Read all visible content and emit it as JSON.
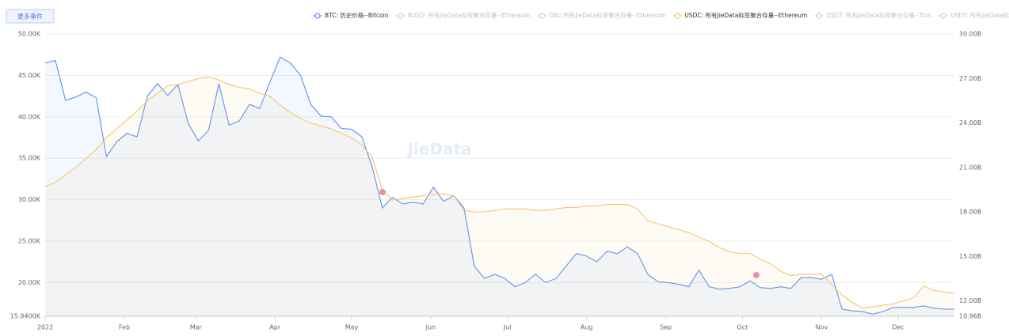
{
  "chart_data": {
    "type": "line",
    "button": "更多事件",
    "watermark": "JieData",
    "x": [
      0,
      4,
      8,
      12,
      16,
      20,
      24,
      28,
      32,
      36,
      40,
      44,
      48,
      52,
      56,
      60,
      64,
      68,
      72,
      76,
      80,
      84,
      88,
      92,
      96,
      100,
      104,
      108,
      112,
      116,
      120,
      124,
      128,
      132,
      136,
      140,
      144,
      148,
      152,
      156,
      160,
      164,
      168,
      172,
      176,
      180,
      184,
      188,
      192,
      196,
      200,
      204,
      208,
      212,
      216,
      220,
      224,
      228,
      232,
      236,
      240,
      244,
      248,
      252,
      256,
      260,
      264,
      268,
      272,
      276,
      280,
      284,
      288,
      292,
      296,
      300,
      304,
      308,
      312,
      316,
      320,
      324,
      328,
      332,
      336,
      340,
      344,
      348,
      352,
      356
    ],
    "xlim": [
      0,
      356
    ],
    "xticks": [
      {
        "value": 0,
        "label": "2022"
      },
      {
        "value": 31,
        "label": "Feb"
      },
      {
        "value": 59,
        "label": "Mar"
      },
      {
        "value": 90,
        "label": "Apr"
      },
      {
        "value": 120,
        "label": "May"
      },
      {
        "value": 151,
        "label": "Jun"
      },
      {
        "value": 181,
        "label": "Jul"
      },
      {
        "value": 212,
        "label": "Aug"
      },
      {
        "value": 243,
        "label": "Sep"
      },
      {
        "value": 273,
        "label": "Oct"
      },
      {
        "value": 304,
        "label": "Nov"
      },
      {
        "value": 334,
        "label": "Dec"
      }
    ],
    "ylim": [
      15.94,
      50
    ],
    "yticks": [
      {
        "value": 15.94,
        "label": "15.9400K"
      },
      {
        "value": 20,
        "label": "20.00K"
      },
      {
        "value": 25,
        "label": "25.00K"
      },
      {
        "value": 30,
        "label": "30.00K"
      },
      {
        "value": 35,
        "label": "35.00K"
      },
      {
        "value": 40,
        "label": "40.00K"
      },
      {
        "value": 45,
        "label": "45.00K"
      },
      {
        "value": 50,
        "label": "50.00K"
      }
    ],
    "y2lim": [
      10.96,
      30
    ],
    "y2ticks": [
      {
        "value": 10.96,
        "label": "10.96B"
      },
      {
        "value": 12,
        "label": "12.00B"
      },
      {
        "value": 15,
        "label": "15.00B"
      },
      {
        "value": 18,
        "label": "18.00B"
      },
      {
        "value": 21,
        "label": "21.00B"
      },
      {
        "value": 24,
        "label": "24.00B"
      },
      {
        "value": 27,
        "label": "27.00B"
      },
      {
        "value": 30,
        "label": "30.00B"
      }
    ],
    "grid": true,
    "series": [
      {
        "name": "BTC: 历史价格--Bitcoin",
        "color": "#5b8ff9",
        "axis": "y",
        "values": [
          46.5,
          46.8,
          42,
          42.4,
          43,
          42.3,
          35.2,
          37,
          38,
          37.6,
          42.5,
          44,
          42.6,
          43.9,
          39.2,
          37.1,
          38.4,
          44,
          39,
          39.5,
          41.5,
          41,
          44.2,
          47.2,
          46.5,
          45,
          41.5,
          40.1,
          40,
          38.6,
          38.5,
          37.6,
          34,
          29,
          30.3,
          29.5,
          29.7,
          29.5,
          31.5,
          29.8,
          30.5,
          29,
          22,
          20.5,
          21,
          20.5,
          19.5,
          20,
          21,
          20,
          20.5,
          22,
          23.5,
          23.2,
          22.5,
          23.8,
          23.5,
          24.3,
          23.5,
          21,
          20.1,
          20,
          19.8,
          19.5,
          21.5,
          19.5,
          19.2,
          19.3,
          19.5,
          20.2,
          19.4,
          19.3,
          19.5,
          19.3,
          20.6,
          20.6,
          20.4,
          21,
          16.8,
          16.6,
          16.5,
          16.2,
          16.5,
          17,
          17,
          17,
          17.2,
          16.9,
          16.8,
          16.8
        ]
      },
      {
        "name": "BUSD: 所有JieData标签聚合存量--Ethereum",
        "color": "#cccccc",
        "hidden": true
      },
      {
        "name": "DAI: 所有JieData标签聚合存量--Ethereum",
        "color": "#cccccc",
        "hidden": true
      },
      {
        "name": "USDC: 所有JieData标签聚合存量--Ethereum",
        "color": "#f6c667",
        "axis": "y2",
        "values": [
          19.7,
          20.0,
          20.5,
          21.0,
          21.6,
          22.2,
          23.0,
          23.6,
          24.2,
          24.8,
          25.5,
          26.0,
          26.5,
          26.6,
          26.8,
          27.0,
          27.1,
          26.9,
          26.6,
          26.4,
          26.3,
          26.0,
          25.8,
          25.2,
          24.7,
          24.3,
          24.0,
          23.8,
          23.6,
          23.3,
          23.0,
          22.5,
          21.7,
          19.5,
          18.8,
          18.9,
          19.0,
          19.1,
          19.2,
          19.2,
          19.1,
          18.1,
          18.0,
          18.0,
          18.1,
          18.2,
          18.2,
          18.2,
          18.1,
          18.1,
          18.2,
          18.3,
          18.3,
          18.4,
          18.4,
          18.5,
          18.5,
          18.5,
          18.2,
          17.4,
          17.2,
          17.0,
          16.8,
          16.6,
          16.3,
          16.0,
          15.6,
          15.3,
          15.2,
          15.2,
          14.8,
          14.5,
          14.0,
          13.7,
          13.8,
          13.8,
          13.8,
          13.1,
          12.4,
          11.9,
          11.5,
          11.6,
          11.7,
          11.8,
          12.0,
          12.2,
          13.0,
          12.7,
          12.6,
          12.5
        ]
      },
      {
        "name": "USDT: 所有JieData标签聚合存量--Tron",
        "color": "#cccccc",
        "hidden": true
      },
      {
        "name": "USDT: 所有JieData标签聚合存量--Ethereum",
        "color": "#cccccc",
        "hidden": true
      }
    ]
  }
}
